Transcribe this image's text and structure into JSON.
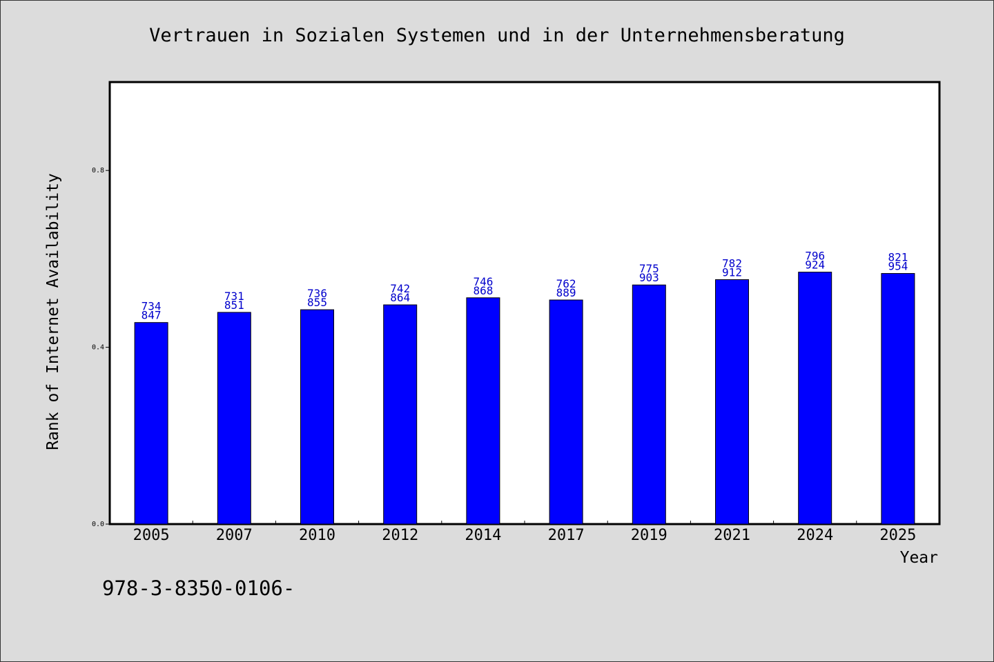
{
  "chart_data": {
    "type": "bar",
    "title": "Vertrauen in Sozialen Systemen und in der Unternehmensberatung",
    "xlabel": "Year",
    "ylabel": "Rank of Internet Availability",
    "ylim": [
      0,
      1.0
    ],
    "yticks": [
      "0.0",
      "0.4",
      "0.8"
    ],
    "ytick_values": [
      0.0,
      0.4,
      0.8
    ],
    "grid": false,
    "categories": [
      "2005",
      "2007",
      "2010",
      "2012",
      "2014",
      "2017",
      "2019",
      "2021",
      "2024",
      "2025"
    ],
    "values": [
      0.456,
      0.479,
      0.485,
      0.496,
      0.512,
      0.507,
      0.541,
      0.553,
      0.57,
      0.567
    ],
    "label_top": [
      "734",
      "731",
      "736",
      "742",
      "746",
      "762",
      "775",
      "782",
      "796",
      "821"
    ],
    "label_bottom": [
      "847",
      "851",
      "855",
      "864",
      "868",
      "889",
      "903",
      "912",
      "924",
      "954"
    ],
    "bar_color": "#0000ff",
    "label_color": "#0000cc"
  },
  "footnote": "978-3-8350-0106-"
}
